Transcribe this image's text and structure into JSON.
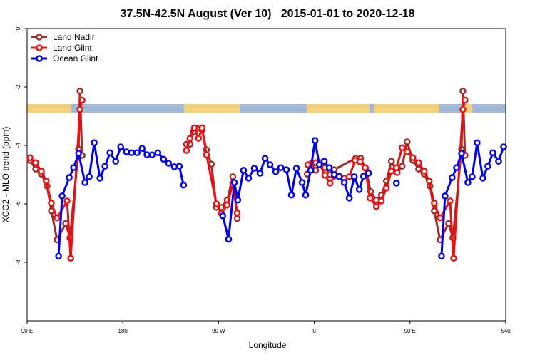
{
  "chart_data": {
    "type": "line",
    "title": "37.5N-42.5N August (Ver 10)   2015-01-01 to 2020-12-18",
    "xlabel": "Longitude",
    "ylabel": "XCO2 - MLO trend (ppm)",
    "xlim": [
      90,
      540
    ],
    "ylim": [
      -10,
      0
    ],
    "xticks": [
      {
        "value": 90,
        "label": "90 E"
      },
      180,
      {
        "value": 270,
        "label": "90 W"
      },
      {
        "value": 360,
        "label": "0"
      },
      {
        "value": 450,
        "label": "90 E"
      },
      540
    ],
    "yticks": [
      0,
      -2,
      -4,
      -6,
      -8
    ],
    "legend": "top-left",
    "series": [
      {
        "name": "Land Nadir",
        "color": "#a52a2a",
        "x": [
          92.7,
          98.1,
          103.4,
          108.8,
          112.8,
          118.2,
          126.3,
          130.3,
          138.4,
          139.7,
          141.7,
          null,
          239.8,
          243.1,
          246.5,
          249.8,
          254.5,
          258.6,
          263.3,
          268.0,
          272.7,
          278.1,
          283.4,
          287.5,
          null,
          353.3,
          357.3,
          361.3,
          365.4,
          370.0,
          374.8,
          378.8,
          398.9,
          403.6,
          408.3,
          413.0,
          418.4,
          423.1,
          427.8,
          432.5,
          437.9,
          442.6,
          447.3,
          452.7,
          458.1,
          463.4,
          468.8,
          472.8,
          478.2,
          486.3,
          490.3,
          498.4,
          499.7,
          501.7
        ],
        "values": [
          -4.51,
          -4.81,
          -4.98,
          -5.39,
          -6.24,
          -7.23,
          -6.67,
          -7.16,
          -4.13,
          -2.14,
          -4.34,
          null,
          -3.96,
          -3.96,
          -3.54,
          -3.42,
          -3.47,
          -4.15,
          -4.64,
          -6.12,
          -6.12,
          -5.87,
          -5.07,
          -6.5,
          null,
          -4.98,
          -4.66,
          -4.85,
          -4.59,
          -4.76,
          -5.0,
          -4.83,
          -4.44,
          -4.44,
          -4.78,
          -5.58,
          -5.87,
          -5.7,
          -5.22,
          -4.54,
          -4.93,
          -4.71,
          -3.88,
          -4.51,
          -4.81,
          -4.98,
          -5.39,
          -6.24,
          -7.23,
          -6.67,
          -7.16,
          -4.13,
          -2.14,
          -4.34
        ]
      },
      {
        "name": "Land Glint",
        "color": "#ee1111",
        "x": [
          92.7,
          98.1,
          103.4,
          108.0,
          112.8,
          118.2,
          127.6,
          131.0,
          139.7,
          141.7,
          null,
          239.8,
          243.1,
          247.2,
          251.2,
          254.5,
          258.6,
          268.0,
          272.7,
          278.1,
          283.4,
          287.5,
          null,
          353.9,
          357.9,
          361.3,
          365.4,
          370.0,
          374.8,
          378.8,
          383.5,
          388.2,
          392.9,
          398.3,
          403.0,
          407.7,
          412.4,
          418.4,
          423.1,
          427.8,
          432.5,
          437.2,
          442.6,
          447.3,
          452.7,
          458.1,
          463.4,
          468.0,
          472.8,
          478.2,
          487.6,
          491.0,
          499.7,
          501.7
        ],
        "values": [
          -4.42,
          -4.59,
          -4.88,
          -5.22,
          -5.97,
          -6.48,
          -5.9,
          -7.86,
          -2.77,
          -2.45,
          null,
          -4.17,
          -3.76,
          -3.4,
          -3.76,
          -3.4,
          -4.32,
          -6.0,
          -6.33,
          -6.04,
          -5.32,
          -6.31,
          null,
          -4.66,
          -4.59,
          -4.59,
          -4.66,
          -5.02,
          -5.29,
          -5.05,
          -5.05,
          -5.12,
          -5.07,
          -4.51,
          -4.56,
          -4.76,
          -5.8,
          -6.09,
          -5.9,
          -5.46,
          -4.88,
          -4.76,
          -4.08,
          -4.22,
          -4.42,
          -4.59,
          -4.88,
          -5.22,
          -5.97,
          -6.48,
          -5.9,
          -7.86,
          -2.77,
          -2.45
        ]
      },
      {
        "name": "Ocean Glint",
        "color": "#0000ee",
        "x": [
          119.6,
          122.9,
          129.6,
          133.7,
          138.4,
          144.4,
          148.4,
          153.1,
          158.5,
          163.2,
          167.9,
          173.3,
          178.0,
          183.4,
          188.1,
          193.4,
          198.1,
          202.8,
          207.5,
          212.9,
          218.3,
          223.0,
          228.4,
          233.1,
          237.1,
          null,
          274.0,
          279.4,
          284.8,
          288.1,
          293.5,
          298.2,
          303.6,
          309.0,
          313.7,
          318.4,
          323.8,
          328.5,
          333.8,
          338.5,
          343.2,
          348.6,
          351.9,
          356.6,
          360.7,
          364.7,
          369.4,
          374.1,
          378.8,
          383.5,
          388.2,
          392.9,
          397.6,
          402.3,
          406.3,
          411.0,
          null,
          437.2,
          null,
          479.6,
          482.9,
          489.6,
          493.7,
          498.4,
          504.4,
          508.4,
          513.1,
          518.5,
          523.2,
          527.9,
          533.3,
          538.0
        ],
        "values": [
          -7.79,
          -5.73,
          -5.1,
          -4.76,
          -4.27,
          -5.27,
          -5.07,
          -3.91,
          -5.12,
          -4.71,
          -4.25,
          -4.54,
          -4.05,
          -4.22,
          -4.25,
          -4.25,
          -4.1,
          -4.32,
          -4.32,
          -4.25,
          -4.47,
          -4.61,
          -4.73,
          -4.71,
          -5.36,
          null,
          -6.41,
          -7.21,
          -5.27,
          -5.87,
          -4.85,
          -5.12,
          -4.78,
          -4.95,
          -4.44,
          -4.66,
          -4.9,
          -4.76,
          -4.83,
          -5.7,
          -4.78,
          -5.27,
          -5.7,
          -4.85,
          -3.83,
          -4.66,
          -4.54,
          -4.76,
          -5.0,
          -5.07,
          -5.27,
          -5.8,
          -5.07,
          -5.51,
          -5.05,
          -4.95,
          null,
          -5.29,
          null,
          -7.79,
          -5.73,
          -5.1,
          -4.76,
          -4.27,
          -5.27,
          -5.07,
          -3.91,
          -5.12,
          -4.71,
          -4.25,
          -4.54,
          -4.05
        ]
      }
    ]
  }
}
